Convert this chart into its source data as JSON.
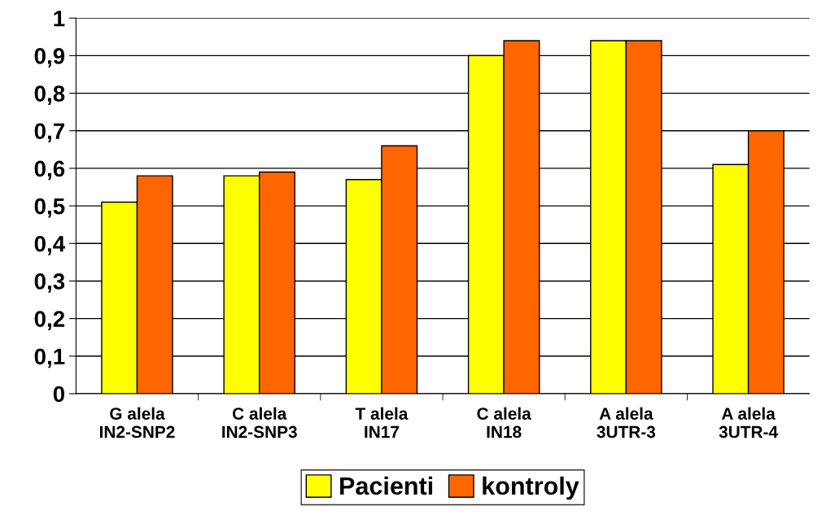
{
  "chart_data": {
    "type": "bar",
    "categories": [
      "G alela\nIN2-SNP2",
      "C alela\nIN2-SNP3",
      "T alela\nIN17",
      "C alela\nIN18",
      "A alela\n3UTR-3",
      "A alela\n3UTR-4"
    ],
    "series": [
      {
        "name": "Pacienti",
        "color": "#ffff00",
        "values": [
          0.51,
          0.58,
          0.57,
          0.9,
          0.94,
          0.61
        ]
      },
      {
        "name": "kontroly",
        "color": "#ff6600",
        "values": [
          0.58,
          0.59,
          0.66,
          0.94,
          0.94,
          0.7
        ]
      }
    ],
    "ylim": [
      0,
      1
    ],
    "yticks": [
      0,
      {
        "value": 0.1,
        "label": "0,1"
      },
      {
        "value": 0.2,
        "label": "0,2"
      },
      {
        "value": 0.3,
        "label": "0,3"
      },
      {
        "value": 0.4,
        "label": "0,4"
      },
      {
        "value": 0.5,
        "label": "0,5"
      },
      {
        "value": 0.6,
        "label": "0,6"
      },
      {
        "value": 0.7,
        "label": "0,7"
      },
      {
        "value": 0.8,
        "label": "0,8"
      },
      {
        "value": 0.9,
        "label": "0,9"
      },
      1
    ],
    "grid": "y",
    "legend": "bottom"
  }
}
